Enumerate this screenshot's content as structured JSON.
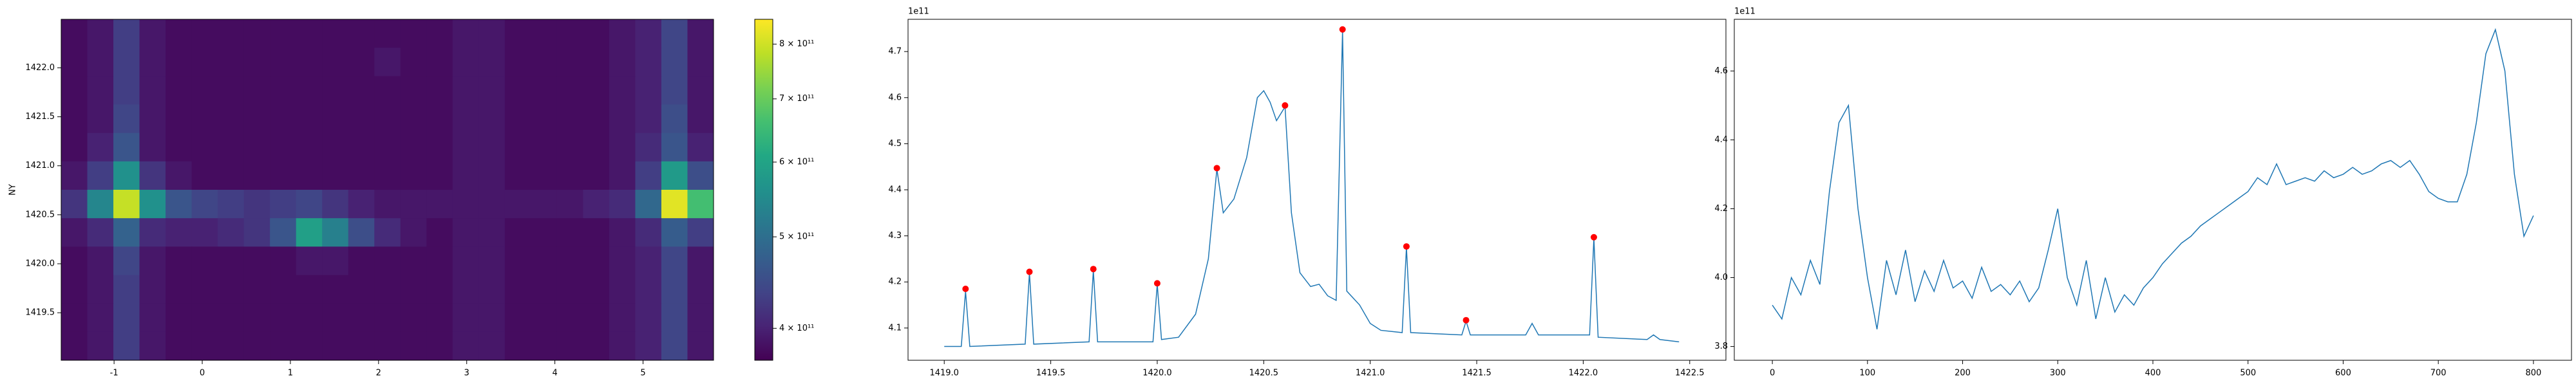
{
  "chart_data": [
    {
      "type": "heatmap",
      "ylabel": "NY",
      "x": [
        -1.452,
        -1.156,
        -0.86,
        -0.564,
        -0.268,
        0.028,
        0.324,
        0.62,
        0.916,
        1.212,
        1.508,
        1.804,
        2.1,
        2.396,
        2.692,
        2.988,
        3.284,
        3.58,
        3.876,
        4.172,
        4.468,
        4.764,
        5.06,
        5.356,
        5.652
      ],
      "y": [
        1422.35,
        1422.06,
        1421.77,
        1421.48,
        1421.19,
        1420.9,
        1420.61,
        1420.32,
        1420.03,
        1419.74,
        1419.45,
        1419.16
      ],
      "values": [
        [
          380000000000.0,
          390000000000.0,
          430000000000.0,
          390000000000.0,
          380000000000.0,
          380000000000.0,
          380000000000.0,
          380000000000.0,
          380000000000.0,
          380000000000.0,
          380000000000.0,
          380000000000.0,
          380000000000.0,
          380000000000.0,
          380000000000.0,
          390000000000.0,
          390000000000.0,
          380000000000.0,
          380000000000.0,
          380000000000.0,
          380000000000.0,
          390000000000.0,
          400000000000.0,
          440000000000.0,
          390000000000.0
        ],
        [
          380000000000.0,
          390000000000.0,
          430000000000.0,
          390000000000.0,
          380000000000.0,
          380000000000.0,
          380000000000.0,
          380000000000.0,
          380000000000.0,
          380000000000.0,
          380000000000.0,
          380000000000.0,
          390000000000.0,
          380000000000.0,
          380000000000.0,
          390000000000.0,
          390000000000.0,
          380000000000.0,
          380000000000.0,
          380000000000.0,
          380000000000.0,
          390000000000.0,
          400000000000.0,
          440000000000.0,
          390000000000.0
        ],
        [
          380000000000.0,
          390000000000.0,
          430000000000.0,
          390000000000.0,
          380000000000.0,
          380000000000.0,
          380000000000.0,
          380000000000.0,
          380000000000.0,
          380000000000.0,
          380000000000.0,
          380000000000.0,
          380000000000.0,
          380000000000.0,
          380000000000.0,
          390000000000.0,
          390000000000.0,
          380000000000.0,
          380000000000.0,
          380000000000.0,
          380000000000.0,
          390000000000.0,
          400000000000.0,
          440000000000.0,
          390000000000.0
        ],
        [
          380000000000.0,
          390000000000.0,
          440000000000.0,
          390000000000.0,
          380000000000.0,
          380000000000.0,
          380000000000.0,
          380000000000.0,
          380000000000.0,
          380000000000.0,
          380000000000.0,
          380000000000.0,
          380000000000.0,
          380000000000.0,
          380000000000.0,
          390000000000.0,
          390000000000.0,
          380000000000.0,
          380000000000.0,
          380000000000.0,
          380000000000.0,
          390000000000.0,
          400000000000.0,
          450000000000.0,
          390000000000.0
        ],
        [
          380000000000.0,
          400000000000.0,
          460000000000.0,
          390000000000.0,
          380000000000.0,
          380000000000.0,
          380000000000.0,
          380000000000.0,
          380000000000.0,
          380000000000.0,
          380000000000.0,
          380000000000.0,
          380000000000.0,
          380000000000.0,
          380000000000.0,
          390000000000.0,
          390000000000.0,
          380000000000.0,
          380000000000.0,
          380000000000.0,
          380000000000.0,
          390000000000.0,
          410000000000.0,
          460000000000.0,
          400000000000.0
        ],
        [
          390000000000.0,
          430000000000.0,
          560000000000.0,
          420000000000.0,
          390000000000.0,
          380000000000.0,
          380000000000.0,
          380000000000.0,
          380000000000.0,
          380000000000.0,
          380000000000.0,
          380000000000.0,
          380000000000.0,
          380000000000.0,
          380000000000.0,
          390000000000.0,
          390000000000.0,
          380000000000.0,
          380000000000.0,
          380000000000.0,
          380000000000.0,
          390000000000.0,
          430000000000.0,
          580000000000.0,
          450000000000.0
        ],
        [
          420000000000.0,
          540000000000.0,
          790000000000.0,
          560000000000.0,
          460000000000.0,
          440000000000.0,
          430000000000.0,
          420000000000.0,
          430000000000.0,
          440000000000.0,
          420000000000.0,
          400000000000.0,
          390000000000.0,
          390000000000.0,
          390000000000.0,
          390000000000.0,
          390000000000.0,
          390000000000.0,
          390000000000.0,
          390000000000.0,
          400000000000.0,
          410000000000.0,
          490000000000.0,
          820000000000.0,
          660000000000.0
        ],
        [
          390000000000.0,
          410000000000.0,
          480000000000.0,
          410000000000.0,
          400000000000.0,
          400000000000.0,
          410000000000.0,
          420000000000.0,
          460000000000.0,
          590000000000.0,
          530000000000.0,
          450000000000.0,
          410000000000.0,
          390000000000.0,
          380000000000.0,
          390000000000.0,
          390000000000.0,
          380000000000.0,
          380000000000.0,
          380000000000.0,
          380000000000.0,
          390000000000.0,
          410000000000.0,
          470000000000.0,
          430000000000.0
        ],
        [
          380000000000.0,
          390000000000.0,
          440000000000.0,
          390000000000.0,
          380000000000.0,
          380000000000.0,
          380000000000.0,
          380000000000.0,
          380000000000.0,
          390000000000.0,
          390000000000.0,
          380000000000.0,
          380000000000.0,
          380000000000.0,
          380000000000.0,
          390000000000.0,
          390000000000.0,
          380000000000.0,
          380000000000.0,
          380000000000.0,
          380000000000.0,
          390000000000.0,
          400000000000.0,
          440000000000.0,
          390000000000.0
        ],
        [
          380000000000.0,
          390000000000.0,
          430000000000.0,
          390000000000.0,
          380000000000.0,
          380000000000.0,
          380000000000.0,
          380000000000.0,
          380000000000.0,
          380000000000.0,
          380000000000.0,
          380000000000.0,
          380000000000.0,
          380000000000.0,
          380000000000.0,
          390000000000.0,
          390000000000.0,
          380000000000.0,
          380000000000.0,
          380000000000.0,
          380000000000.0,
          390000000000.0,
          400000000000.0,
          440000000000.0,
          390000000000.0
        ],
        [
          380000000000.0,
          390000000000.0,
          430000000000.0,
          390000000000.0,
          380000000000.0,
          380000000000.0,
          380000000000.0,
          380000000000.0,
          380000000000.0,
          380000000000.0,
          380000000000.0,
          380000000000.0,
          380000000000.0,
          380000000000.0,
          380000000000.0,
          390000000000.0,
          390000000000.0,
          380000000000.0,
          380000000000.0,
          380000000000.0,
          380000000000.0,
          390000000000.0,
          400000000000.0,
          440000000000.0,
          390000000000.0
        ],
        [
          380000000000.0,
          390000000000.0,
          430000000000.0,
          390000000000.0,
          380000000000.0,
          380000000000.0,
          380000000000.0,
          380000000000.0,
          380000000000.0,
          380000000000.0,
          380000000000.0,
          380000000000.0,
          380000000000.0,
          380000000000.0,
          380000000000.0,
          390000000000.0,
          390000000000.0,
          380000000000.0,
          380000000000.0,
          380000000000.0,
          380000000000.0,
          390000000000.0,
          400000000000.0,
          440000000000.0,
          390000000000.0
        ]
      ],
      "xlim": [
        -1.6,
        5.8
      ],
      "ylim": [
        1419.015,
        1422.495
      ],
      "xticks": [
        -1,
        0,
        1,
        2,
        3,
        4,
        5
      ],
      "yticks": [
        1419.5,
        {
          "value": 1420,
          "label": "1420.0"
        },
        1420.5,
        {
          "value": 1421,
          "label": "1421.0"
        },
        1421.5,
        {
          "value": 1422,
          "label": "1422.0"
        }
      ],
      "colormap": "viridis",
      "colorbar": {
        "scale": "log",
        "clim": [
          370000000000.0,
          850000000000.0
        ],
        "ticks": [
          {
            "value": 400000000000.0,
            "label": "4 × 10¹¹"
          },
          {
            "value": 500000000000.0,
            "label": "5 × 10¹¹"
          },
          {
            "value": 600000000000.0,
            "label": "6 × 10¹¹"
          },
          {
            "value": 700000000000.0,
            "label": "7 × 10¹¹"
          },
          {
            "value": 800000000000.0,
            "label": "8 × 10¹¹"
          }
        ]
      }
    },
    {
      "type": "line",
      "offset_text": "1e11",
      "series": [
        {
          "color": "#1f77b4",
          "style": "line",
          "x": [
            1419.0,
            1419.08,
            1419.1,
            1419.12,
            1419.38,
            1419.4,
            1419.42,
            1419.68,
            1419.7,
            1419.72,
            1419.98,
            1420.0,
            1420.02,
            1420.1,
            1420.18,
            1420.24,
            1420.28,
            1420.31,
            1420.36,
            1420.42,
            1420.47,
            1420.5,
            1420.53,
            1420.56,
            1420.6,
            1420.63,
            1420.67,
            1420.72,
            1420.76,
            1420.8,
            1420.84,
            1420.87,
            1420.89,
            1420.95,
            1421.0,
            1421.05,
            1421.15,
            1421.17,
            1421.19,
            1421.43,
            1421.45,
            1421.47,
            1421.73,
            1421.76,
            1421.79,
            1422.03,
            1422.05,
            1422.07,
            1422.3,
            1422.33,
            1422.36,
            1422.45
          ],
          "values": [
            4.06,
            4.06,
            4.18,
            4.06,
            4.065,
            4.22,
            4.065,
            4.07,
            4.225,
            4.07,
            4.07,
            4.195,
            4.075,
            4.08,
            4.13,
            4.25,
            4.445,
            4.35,
            4.38,
            4.47,
            4.6,
            4.615,
            4.59,
            4.55,
            4.58,
            4.35,
            4.22,
            4.19,
            4.195,
            4.17,
            4.16,
            4.745,
            4.18,
            4.15,
            4.11,
            4.095,
            4.09,
            4.275,
            4.09,
            4.085,
            4.115,
            4.085,
            4.085,
            4.11,
            4.085,
            4.085,
            4.295,
            4.08,
            4.075,
            4.085,
            4.075,
            4.07
          ]
        },
        {
          "color": "red",
          "style": "markers",
          "x": [
            1419.1,
            1419.4,
            1419.7,
            1420.0,
            1420.28,
            1420.6,
            1420.87,
            1421.17,
            1421.45,
            1422.05
          ],
          "values": [
            4.185,
            4.222,
            4.228,
            4.197,
            4.447,
            4.583,
            4.748,
            4.277,
            4.117,
            4.297
          ]
        }
      ],
      "xlim": [
        1418.83,
        1422.67
      ],
      "ylim": [
        4.03,
        4.77
      ],
      "xticks": [
        {
          "value": 1419,
          "label": "1419.0"
        },
        1419.5,
        {
          "value": 1420,
          "label": "1420.0"
        },
        1420.5,
        {
          "value": 1421,
          "label": "1421.0"
        },
        1421.5,
        {
          "value": 1422,
          "label": "1422.0"
        },
        1422.5
      ],
      "yticks": [
        4.1,
        4.2,
        4.3,
        4.4,
        4.5,
        4.6,
        4.7
      ]
    },
    {
      "type": "line",
      "offset_text": "1e11",
      "series": [
        {
          "color": "#1f77b4",
          "style": "line",
          "x": [
            0,
            10,
            20,
            30,
            40,
            50,
            60,
            70,
            80,
            90,
            100,
            110,
            120,
            130,
            140,
            150,
            160,
            170,
            180,
            190,
            200,
            210,
            220,
            230,
            240,
            250,
            260,
            270,
            280,
            290,
            300,
            310,
            320,
            330,
            340,
            350,
            360,
            370,
            380,
            390,
            400,
            410,
            420,
            430,
            440,
            450,
            460,
            470,
            480,
            490,
            500,
            510,
            520,
            530,
            540,
            550,
            560,
            570,
            580,
            590,
            600,
            610,
            620,
            630,
            640,
            650,
            660,
            670,
            680,
            690,
            700,
            710,
            720,
            730,
            740,
            750,
            760,
            770,
            780,
            790,
            800
          ],
          "values": [
            3.92,
            3.88,
            4.0,
            3.95,
            4.05,
            3.98,
            4.25,
            4.45,
            4.5,
            4.2,
            4.0,
            3.85,
            4.05,
            3.95,
            4.08,
            3.93,
            4.02,
            3.96,
            4.05,
            3.97,
            3.99,
            3.94,
            4.03,
            3.96,
            3.98,
            3.95,
            3.99,
            3.93,
            3.97,
            4.08,
            4.2,
            4.0,
            3.92,
            4.05,
            3.88,
            4.0,
            3.9,
            3.95,
            3.92,
            3.97,
            4.0,
            4.04,
            4.07,
            4.1,
            4.12,
            4.15,
            4.17,
            4.19,
            4.21,
            4.23,
            4.25,
            4.29,
            4.27,
            4.33,
            4.27,
            4.28,
            4.29,
            4.28,
            4.31,
            4.29,
            4.3,
            4.32,
            4.3,
            4.31,
            4.33,
            4.34,
            4.32,
            4.34,
            4.3,
            4.25,
            4.23,
            4.22,
            4.22,
            4.3,
            4.45,
            4.65,
            4.72,
            4.6,
            4.3,
            4.12,
            4.18
          ]
        }
      ],
      "xlim": [
        -40,
        840
      ],
      "ylim": [
        3.76,
        4.75
      ],
      "xticks": [
        0,
        100,
        200,
        300,
        400,
        500,
        600,
        700,
        800
      ],
      "yticks": [
        3.8,
        {
          "value": 4,
          "label": "4.0"
        },
        4.2,
        4.4,
        4.6
      ]
    }
  ]
}
